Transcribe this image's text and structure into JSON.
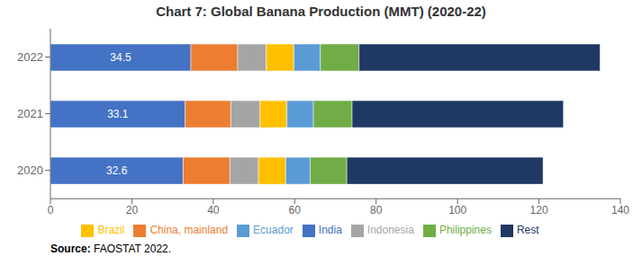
{
  "chart_data": {
    "type": "bar",
    "orientation": "horizontal",
    "stacked": true,
    "title": "Chart 7: Global Banana Production (MMT) (2020-22)",
    "categories": [
      "2020",
      "2021",
      "2022"
    ],
    "series": [
      {
        "name": "India",
        "color": "#4472C4",
        "values": [
          32.6,
          33.1,
          34.5
        ],
        "data_labels": true
      },
      {
        "name": "China, mainland",
        "color": "#ED7D31",
        "values": [
          11.5,
          11.2,
          11.5
        ]
      },
      {
        "name": "Indonesia",
        "color": "#A5A5A5",
        "values": [
          7.0,
          7.2,
          7.0
        ]
      },
      {
        "name": "Brazil",
        "color": "#FFC000",
        "values": [
          6.7,
          6.6,
          6.8
        ]
      },
      {
        "name": "Ecuador",
        "color": "#5B9BD5",
        "values": [
          6.0,
          6.5,
          6.5
        ]
      },
      {
        "name": "Philippines",
        "color": "#70AD47",
        "values": [
          9.0,
          9.5,
          9.5
        ]
      },
      {
        "name": "Rest",
        "color": "#1F3864",
        "values": [
          48.2,
          51.9,
          59.2
        ]
      }
    ],
    "xlim": [
      0,
      140
    ],
    "xticks": [
      0,
      20,
      40,
      60,
      80,
      100,
      120,
      140
    ],
    "grid": false,
    "legend": "bottom",
    "annotations": [
      "Source:",
      " FAOSTAT 2022."
    ]
  }
}
